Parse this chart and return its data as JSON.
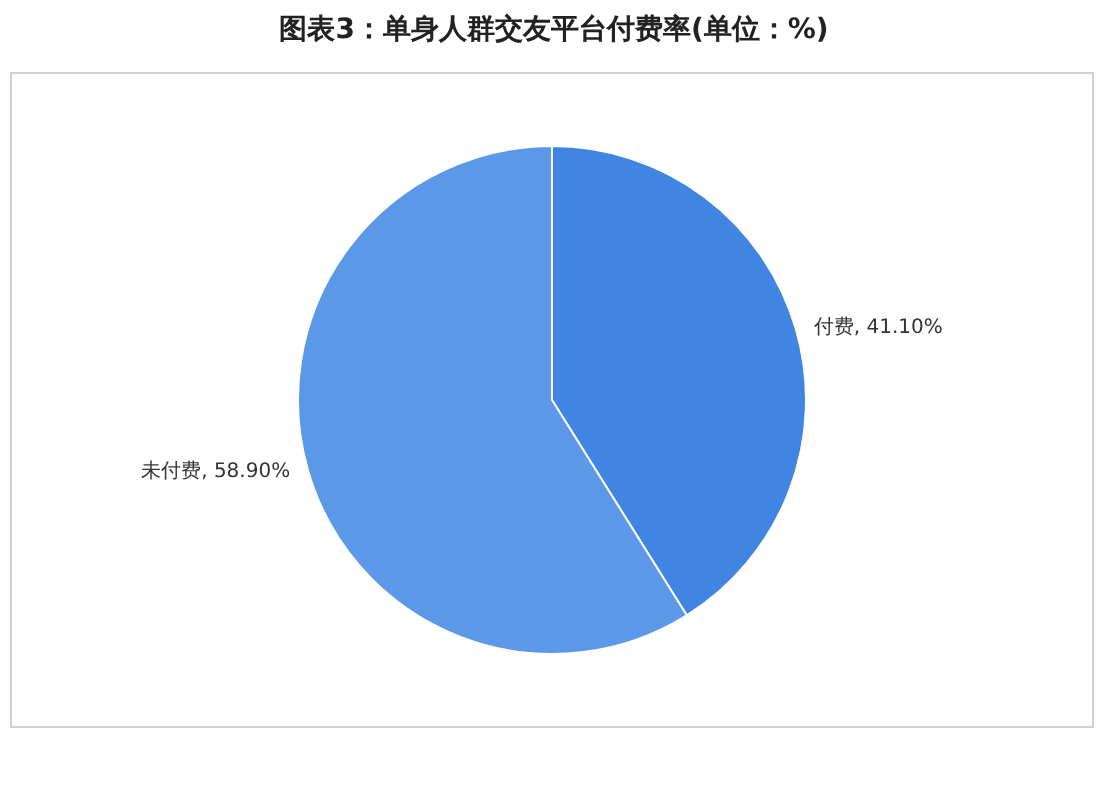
{
  "chart_data": {
    "type": "pie",
    "title": "图表3：单身人群交友平台付费率(单位：%)",
    "categories": [
      "付费",
      "未付费"
    ],
    "values": [
      41.1,
      58.9
    ],
    "colors": [
      "#4185e2",
      "#5b98e8"
    ],
    "value_labels": [
      "41.10%",
      "58.90%"
    ],
    "legend": false
  }
}
